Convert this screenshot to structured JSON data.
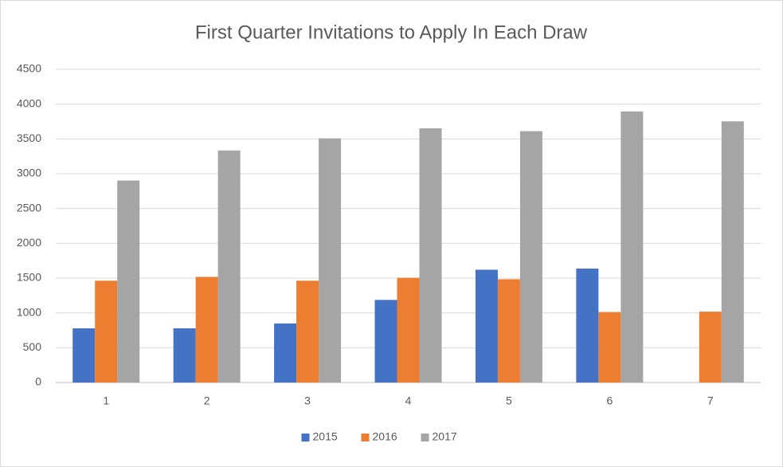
{
  "chart_data": {
    "type": "bar",
    "title": "First Quarter Invitations to Apply In Each Draw",
    "categories": [
      "1",
      "2",
      "3",
      "4",
      "5",
      "6",
      "7"
    ],
    "series": [
      {
        "name": "2015",
        "color": "#4472c4",
        "values": [
          779,
          779,
          849,
          1187,
          1621,
          1637,
          null
        ]
      },
      {
        "name": "2016",
        "color": "#ed7d31",
        "values": [
          1463,
          1518,
          1463,
          1505,
          1484,
          1013,
          1018
        ]
      },
      {
        "name": "2017",
        "color": "#a5a5a5",
        "values": [
          2902,
          3334,
          3508,
          3653,
          3611,
          3895,
          3753
        ]
      }
    ],
    "ylim": [
      0,
      4500
    ],
    "yticks": [
      0,
      500,
      1000,
      1500,
      2000,
      2500,
      3000,
      3500,
      4000,
      4500
    ],
    "grid": true,
    "legend": "bottom"
  }
}
